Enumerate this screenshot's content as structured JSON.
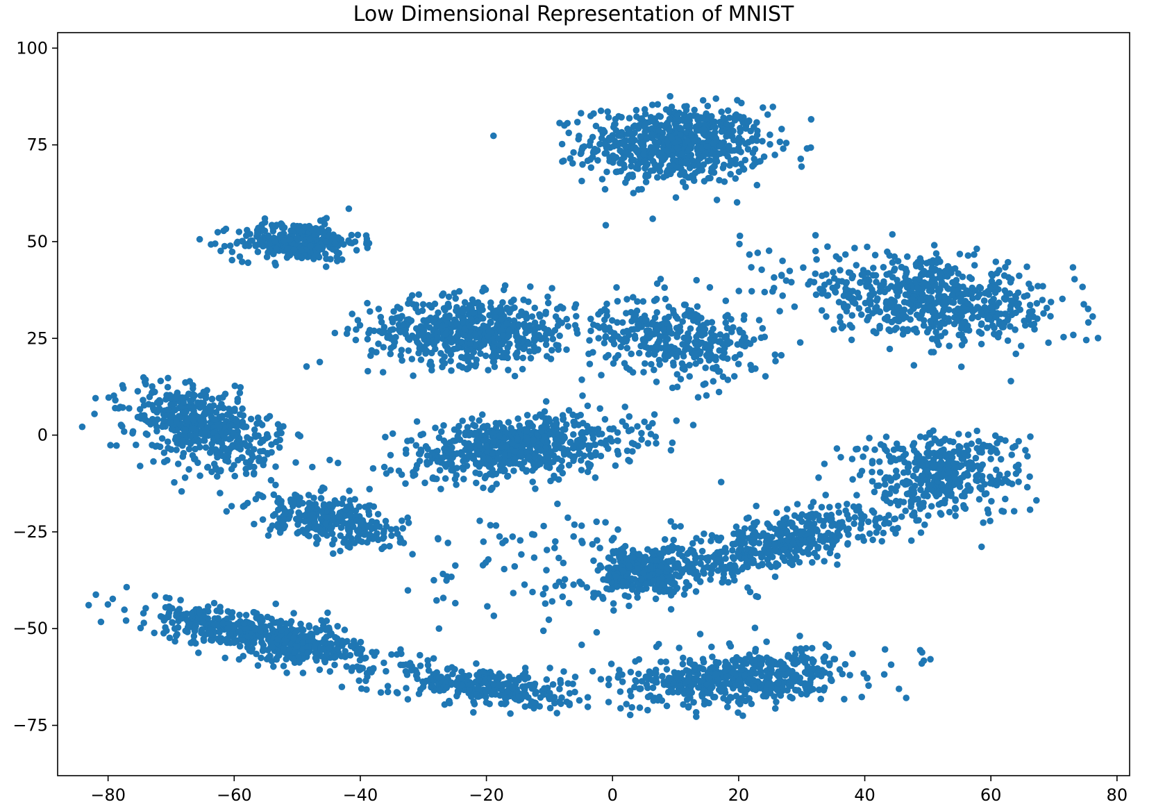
{
  "chart_data": {
    "type": "scatter",
    "title": "Low Dimensional Representation of MNIST",
    "xlabel": "",
    "ylabel": "",
    "xlim": [
      -88,
      82
    ],
    "ylim": [
      -88,
      104
    ],
    "xticks": [
      -80,
      -60,
      -40,
      -20,
      0,
      20,
      40,
      60,
      80
    ],
    "yticks": [
      -75,
      -50,
      -25,
      0,
      25,
      50,
      75,
      100
    ],
    "xtick_labels": [
      "−80",
      "−60",
      "−40",
      "−20",
      "0",
      "20",
      "40",
      "60",
      "80"
    ],
    "ytick_labels": [
      "−75",
      "−50",
      "−25",
      "0",
      "25",
      "50",
      "75",
      "100"
    ],
    "grid": false,
    "marker_color": "#1f77b4",
    "series": [
      {
        "clusters": [
          {
            "center": [
              10,
              75
            ],
            "spread": [
              13,
              9
            ],
            "angle": 0,
            "n": 700
          },
          {
            "center": [
              -50,
              50
            ],
            "spread": [
              9,
              4.5
            ],
            "angle": 0,
            "n": 300
          },
          {
            "center": [
              -22,
              27
            ],
            "spread": [
              15,
              8
            ],
            "angle": 0,
            "n": 600
          },
          {
            "center": [
              10,
              25
            ],
            "spread": [
              12,
              9
            ],
            "angle": -20,
            "n": 350
          },
          {
            "center": [
              -15,
              -3
            ],
            "spread": [
              17,
              7
            ],
            "angle": 10,
            "n": 650
          },
          {
            "center": [
              50,
              35
            ],
            "spread": [
              20,
              9
            ],
            "angle": -15,
            "n": 650
          },
          {
            "center": [
              -65,
              2
            ],
            "spread": [
              12,
              8
            ],
            "angle": -35,
            "n": 500
          },
          {
            "center": [
              -45,
              -22
            ],
            "spread": [
              11,
              5
            ],
            "angle": -20,
            "n": 300
          },
          {
            "center": [
              -55,
              -52
            ],
            "spread": [
              18,
              5
            ],
            "angle": -20,
            "n": 550
          },
          {
            "center": [
              -20,
              -65
            ],
            "spread": [
              12,
              4.5
            ],
            "angle": -12,
            "n": 300
          },
          {
            "center": [
              25,
              -28
            ],
            "spread": [
              20,
              6
            ],
            "angle": 25,
            "n": 500
          },
          {
            "center": [
              52,
              -10
            ],
            "spread": [
              12,
              10
            ],
            "angle": 0,
            "n": 400
          },
          {
            "center": [
              5,
              -35
            ],
            "spread": [
              6,
              6
            ],
            "angle": 0,
            "n": 250
          },
          {
            "center": [
              20,
              -63
            ],
            "spread": [
              17,
              6
            ],
            "angle": 10,
            "n": 550
          },
          {
            "center": [
              -5,
              -35
            ],
            "spread": [
              25,
              15
            ],
            "angle": 0,
            "n": 120
          }
        ]
      }
    ]
  }
}
